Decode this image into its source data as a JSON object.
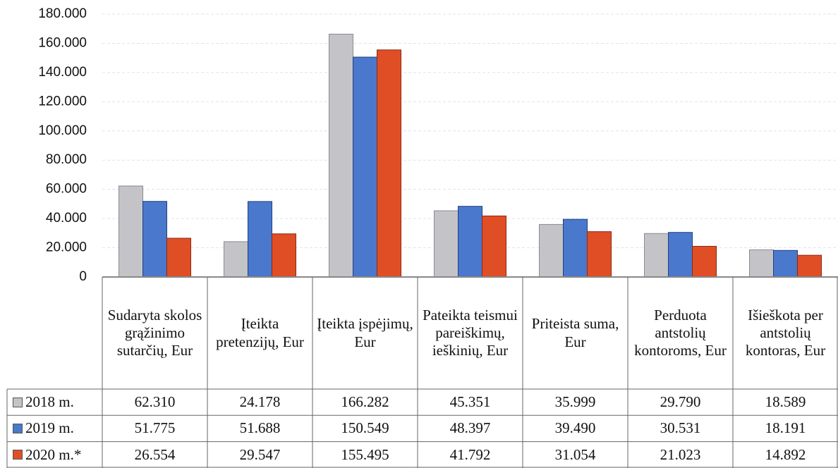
{
  "chart_data": {
    "type": "bar",
    "categories": [
      "Sudaryta skolos grąžinimo sutarčių, Eur",
      "Įteikta pretenzijų, Eur",
      "Įteikta įspėjimų, Eur",
      "Pateikta teismui pareiškimų, ieškinių, Eur",
      "Priteista suma, Eur",
      "Perduota antstolių kontoroms, Eur",
      "Išieškota per antstolių kontoras, Eur"
    ],
    "series": [
      {
        "name": "2018 m.",
        "color": "#c4c4c8",
        "values": [
          62310,
          24178,
          166282,
          45351,
          35999,
          29790,
          18589
        ],
        "value_labels": [
          "62.310",
          "24.178",
          "166.282",
          "45.351",
          "35.999",
          "29.790",
          "18.589"
        ]
      },
      {
        "name": "2019 m.",
        "color": "#4a78cc",
        "values": [
          51775,
          51688,
          150549,
          48397,
          39490,
          30531,
          18191
        ],
        "value_labels": [
          "51.775",
          "51.688",
          "150.549",
          "48.397",
          "39.490",
          "30.531",
          "18.191"
        ]
      },
      {
        "name": "2020 m.*",
        "color": "#e04e26",
        "values": [
          26554,
          29547,
          155495,
          41792,
          31054,
          21023,
          14892
        ],
        "value_labels": [
          "26.554",
          "29.547",
          "155.495",
          "41.792",
          "31.054",
          "21.023",
          "14.892"
        ]
      }
    ],
    "ylim": [
      0,
      180000
    ],
    "yticks": [
      0,
      {
        "value": 20000,
        "label": "20.000"
      },
      {
        "value": 40000,
        "label": "40.000"
      },
      {
        "value": 60000,
        "label": "60.000"
      },
      {
        "value": 80000,
        "label": "80.000"
      },
      {
        "value": 100000,
        "label": "100.000"
      },
      {
        "value": 120000,
        "label": "120.000"
      },
      {
        "value": 140000,
        "label": "140.000"
      },
      {
        "value": 160000,
        "label": "160.000"
      },
      {
        "value": 180000,
        "label": "180.000"
      }
    ],
    "grid": true
  }
}
